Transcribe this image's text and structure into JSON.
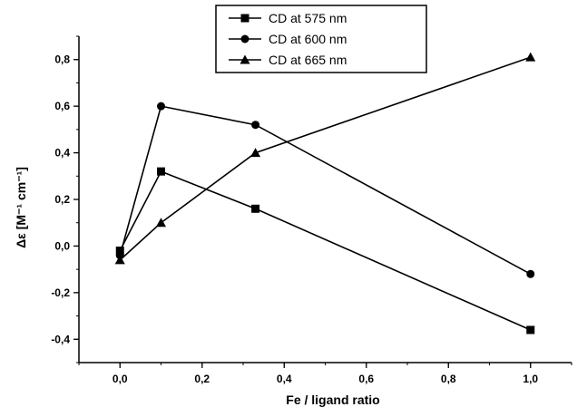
{
  "chart_data": {
    "type": "line",
    "xlabel": "Fe / ligand ratio",
    "ylabel": "Δε [M⁻¹ cm⁻¹]",
    "xlim": [
      -0.1,
      1.1
    ],
    "ylim": [
      -0.5,
      0.9
    ],
    "xticks": [
      0.0,
      0.2,
      0.4,
      0.6,
      0.8,
      1.0
    ],
    "xtick_labels": [
      "0,0",
      "0,2",
      "0,4",
      "0,6",
      "0,8",
      "1,0"
    ],
    "yticks": [
      -0.4,
      -0.2,
      0.0,
      0.2,
      0.4,
      0.6,
      0.8
    ],
    "ytick_labels": [
      "-0,4",
      "-0,2",
      "0,0",
      "0,2",
      "0,4",
      "0,6",
      "0,8"
    ],
    "grid": false,
    "legend_position": "top",
    "series": [
      {
        "name": "CD at 575 nm",
        "marker": "square",
        "x": [
          0.0,
          0.1,
          0.33,
          1.0
        ],
        "y": [
          -0.02,
          0.32,
          0.16,
          -0.36
        ]
      },
      {
        "name": "CD at 600 nm",
        "marker": "circle",
        "x": [
          0.0,
          0.1,
          0.33,
          1.0
        ],
        "y": [
          -0.04,
          0.6,
          0.52,
          -0.12
        ]
      },
      {
        "name": "CD at 665 nm",
        "marker": "triangle",
        "x": [
          0.0,
          0.1,
          0.33,
          1.0
        ],
        "y": [
          -0.06,
          0.1,
          0.4,
          0.81
        ]
      }
    ]
  }
}
